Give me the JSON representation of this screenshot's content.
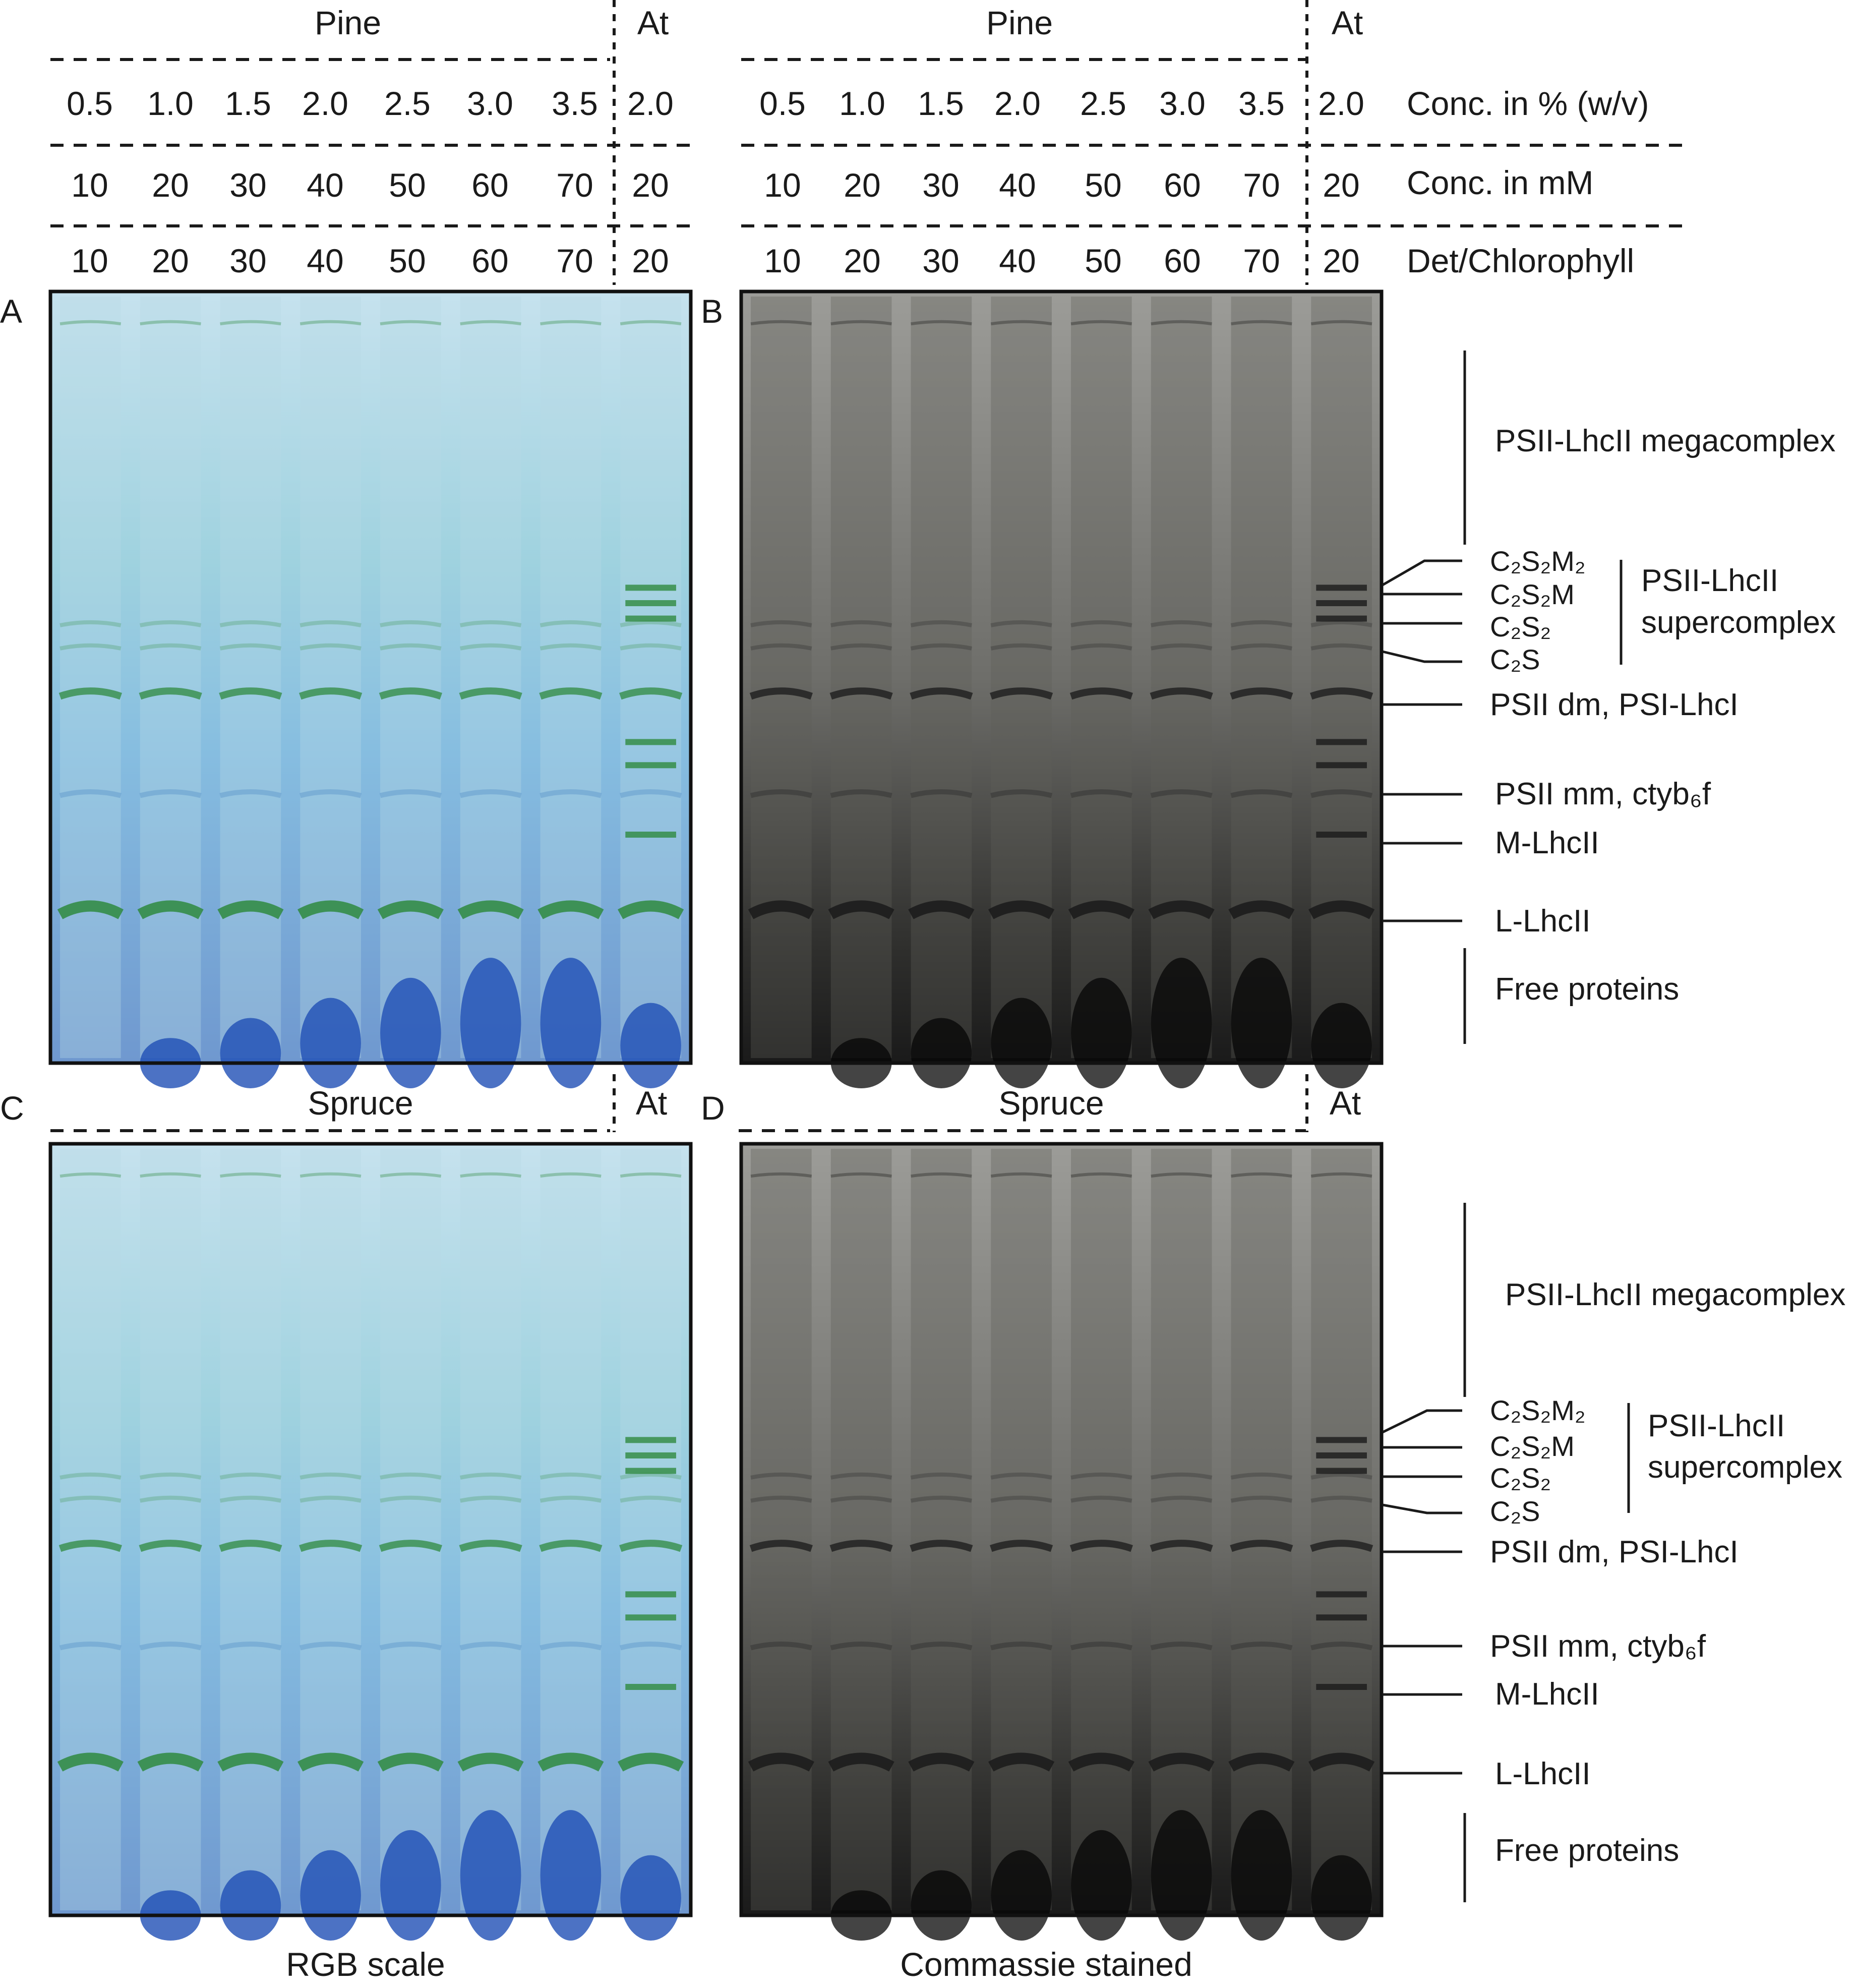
{
  "panels": {
    "top": {
      "pine_label": "Pine",
      "at_label": "At",
      "percent": [
        "0.5",
        "1.0",
        "1.5",
        "2.0",
        "2.5",
        "3.0",
        "3.5"
      ],
      "percent_at": "2.0",
      "mm": [
        "10",
        "20",
        "30",
        "40",
        "50",
        "60",
        "70"
      ],
      "mm_at": "20",
      "det": [
        "10",
        "20",
        "30",
        "40",
        "50",
        "60",
        "70"
      ],
      "det_at": "20",
      "row_labels": [
        "Conc. in % (w/v)",
        "Conc. in mM",
        "Det/Chlorophyll"
      ]
    },
    "bottom": {
      "spruce_label": "Spruce",
      "at_label": "At"
    },
    "letters": [
      "A",
      "B",
      "C",
      "D"
    ]
  },
  "bands": {
    "megacomplex": "PSII-LhcII megacomplex",
    "supercomplex_line1": "PSII-LhcII",
    "supercomplex_line2": "supercomplex",
    "sub": [
      "C₂S₂M₂",
      "C₂S₂M",
      "C₂S₂",
      "C₂S"
    ],
    "dm": "PSII dm, PSI-LhcI",
    "mm": "PSII mm, ctyb₆f",
    "mlhc": "M-LhcII",
    "llhc": "L-LhcII",
    "free": "Free proteins"
  },
  "captions": {
    "rgb": "RGB scale",
    "coomassie": "Commassie stained"
  },
  "colors": {
    "gel_blue": "#8fc3df",
    "gel_green": "#2f8a3e",
    "dye_blue": "#1f4fb5",
    "gel_grey": "#8a8a86",
    "band_dark": "#1a1a1a"
  }
}
